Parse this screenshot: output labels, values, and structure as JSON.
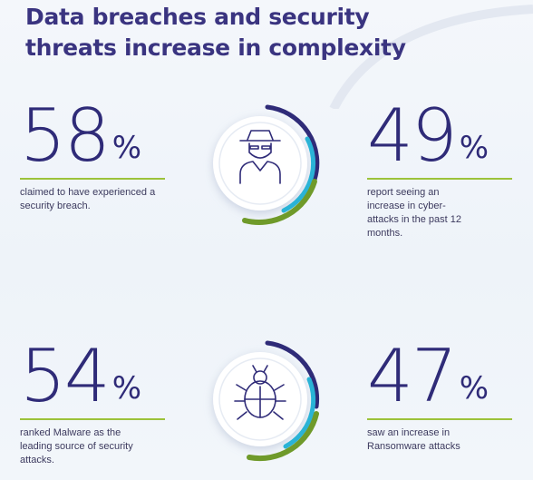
{
  "title": "Data breaches and security threats increase in complexity",
  "colors": {
    "navy": "#2f2b78",
    "lime": "#9cc23a",
    "cyan": "#2ab3d6",
    "green": "#6f9a2a"
  },
  "stats": [
    {
      "value": "58",
      "unit": "%",
      "text": "claimed to have experienced a security breach."
    },
    {
      "value": "49",
      "unit": "%",
      "text": "report seeing an increase in cyber-attacks in the past 12 months."
    },
    {
      "value": "54",
      "unit": "%",
      "text": "ranked Malware as the leading source of security attacks."
    },
    {
      "value": "47",
      "unit": "%",
      "text": "saw an increase in Ransomware attacks"
    }
  ],
  "icons": [
    "hacker-icon",
    "bug-icon"
  ]
}
